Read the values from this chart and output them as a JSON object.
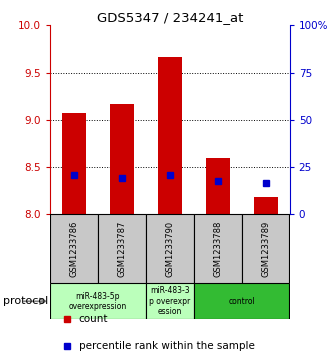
{
  "title": "GDS5347 / 234241_at",
  "samples": [
    "GSM1233786",
    "GSM1233787",
    "GSM1233790",
    "GSM1233788",
    "GSM1233789"
  ],
  "bar_bottom": 8.0,
  "bar_tops": [
    9.07,
    9.17,
    9.67,
    8.6,
    8.18
  ],
  "blue_y": [
    8.42,
    8.38,
    8.42,
    8.35,
    8.33
  ],
  "ylim": [
    8.0,
    10.0
  ],
  "ylim_right": [
    0,
    100
  ],
  "yticks_left": [
    8.0,
    8.5,
    9.0,
    9.5,
    10.0
  ],
  "yticks_right": [
    0,
    25,
    50,
    75,
    100
  ],
  "bar_color": "#cc0000",
  "blue_color": "#0000cc",
  "sample_bg": "#c8c8c8",
  "protocol_data": [
    {
      "start": 0,
      "end": 1,
      "label": "miR-483-5p\noverexpression",
      "color": "#bbffbb"
    },
    {
      "start": 2,
      "end": 2,
      "label": "miR-483-3\np overexpr\nession",
      "color": "#bbffbb"
    },
    {
      "start": 3,
      "end": 4,
      "label": "control",
      "color": "#33bb33"
    }
  ],
  "legend_count_label": "count",
  "legend_percentile_label": "percentile rank within the sample",
  "protocol_label": "protocol",
  "bar_width": 0.5
}
